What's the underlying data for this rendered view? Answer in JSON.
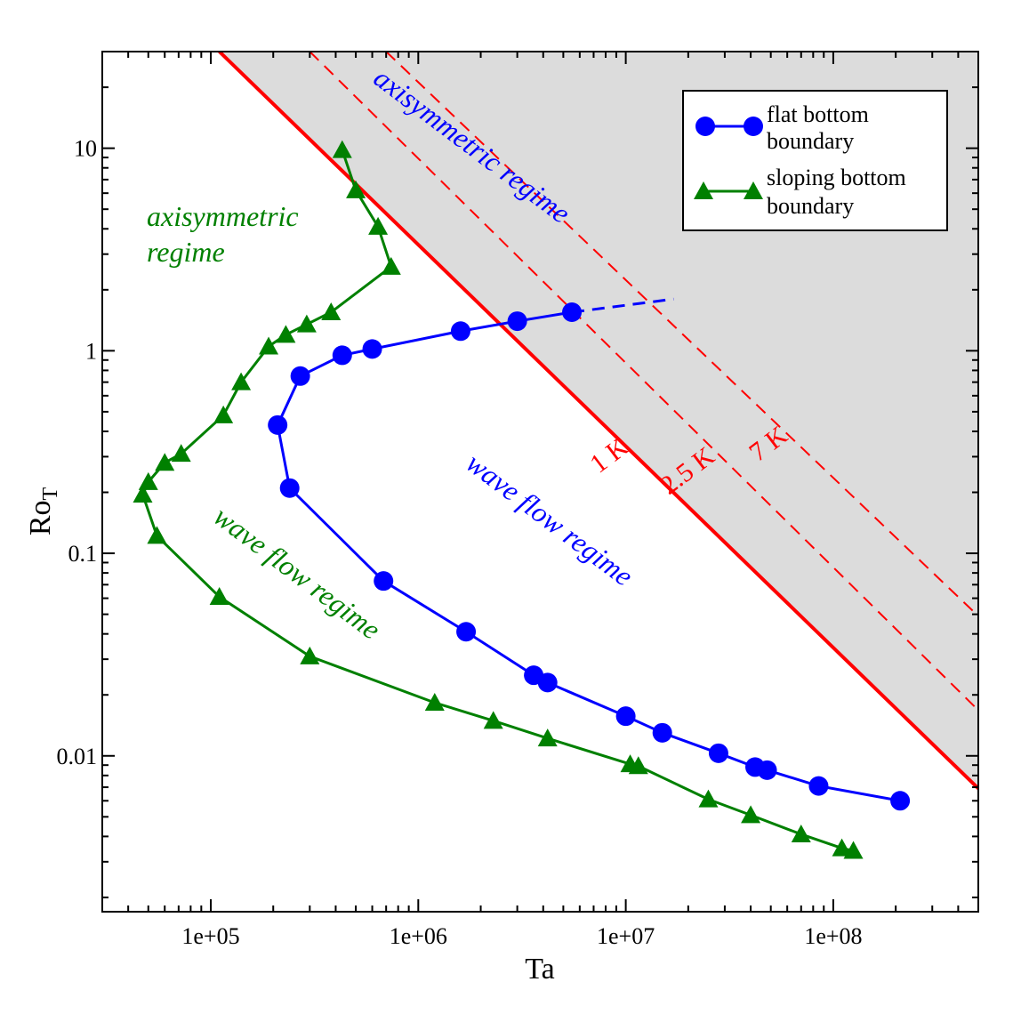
{
  "chart_data": {
    "type": "line",
    "xlabel": "Ta",
    "ylabel": "Ro",
    "ylabel_subscript": "T",
    "x_scale": "log",
    "y_scale": "log",
    "xlim": [
      30000,
      500000000
    ],
    "ylim": [
      0.0017,
      30
    ],
    "x_ticks": [
      {
        "value": 100000,
        "label": "1e+05"
      },
      {
        "value": 1000000,
        "label": "1e+06"
      },
      {
        "value": 10000000,
        "label": "1e+07"
      },
      {
        "value": 100000000,
        "label": "1e+08"
      }
    ],
    "y_ticks": [
      {
        "value": 0.01,
        "label": "0.01"
      },
      {
        "value": 0.1,
        "label": "0.1"
      },
      {
        "value": 1,
        "label": "1"
      },
      {
        "value": 10,
        "label": "10"
      }
    ],
    "series": [
      {
        "name": "flat bottom boundary",
        "legend_lines": [
          "flat bottom",
          "boundary"
        ],
        "color": "#0000ff",
        "marker": "circle",
        "points": [
          [
            5500000,
            1.55
          ],
          [
            3000000,
            1.4
          ],
          [
            1600000,
            1.25
          ],
          [
            600000,
            1.02
          ],
          [
            430000,
            0.95
          ],
          [
            270000,
            0.75
          ],
          [
            210000,
            0.43
          ],
          [
            240000,
            0.21
          ],
          [
            680000,
            0.073
          ],
          [
            1700000,
            0.041
          ],
          [
            3600000,
            0.025
          ],
          [
            4200000,
            0.023
          ],
          [
            10000000,
            0.0157
          ],
          [
            15000000,
            0.013
          ],
          [
            28000000,
            0.0103
          ],
          [
            42000000,
            0.0088
          ],
          [
            48000000,
            0.0085
          ],
          [
            85000000,
            0.0071
          ],
          [
            210000000,
            0.006
          ]
        ],
        "extension": [
          [
            5500000,
            1.55
          ],
          [
            17000000,
            1.8
          ]
        ]
      },
      {
        "name": "sloping bottom boundary",
        "legend_lines": [
          "sloping bottom",
          "boundary"
        ],
        "color": "#008000",
        "marker": "triangle",
        "points": [
          [
            430000,
            9.8
          ],
          [
            500000,
            6.2
          ],
          [
            640000,
            4.1
          ],
          [
            740000,
            2.6
          ],
          [
            380000,
            1.55
          ],
          [
            290000,
            1.35
          ],
          [
            230000,
            1.2
          ],
          [
            190000,
            1.05
          ],
          [
            140000,
            0.7
          ],
          [
            115000,
            0.48
          ],
          [
            72000,
            0.31
          ],
          [
            60000,
            0.28
          ],
          [
            50000,
            0.225
          ],
          [
            47000,
            0.195
          ],
          [
            55000,
            0.122
          ],
          [
            110000,
            0.061
          ],
          [
            300000,
            0.031
          ],
          [
            1200000,
            0.0183
          ],
          [
            2300000,
            0.0149
          ],
          [
            4200000,
            0.0122
          ],
          [
            10500000,
            0.0091
          ],
          [
            11500000,
            0.0089
          ],
          [
            25000000,
            0.0061
          ],
          [
            40000000,
            0.0051
          ],
          [
            70000000,
            0.0041
          ],
          [
            110000000,
            0.0035
          ],
          [
            125000000,
            0.0034
          ]
        ]
      }
    ],
    "threshold_lines": [
      {
        "label": "1 K",
        "style": "solid",
        "color": "#ff0000",
        "line": [
          [
            110000,
            30
          ],
          [
            500000000,
            0.0069
          ]
        ]
      },
      {
        "label": "2.5 K",
        "style": "dashed",
        "color": "#ff0000",
        "line": [
          [
            300000,
            30
          ],
          [
            500000000,
            0.0168
          ]
        ]
      },
      {
        "label": "7 K",
        "style": "dashed",
        "color": "#ff0000",
        "line": [
          [
            700000,
            30
          ],
          [
            500000000,
            0.049
          ]
        ]
      }
    ],
    "shaded_region": {
      "color": "#dcdcdc",
      "bounded_by": "1 K"
    },
    "annotations": [
      {
        "text_lines": [
          "axisymmetric",
          "regime"
        ],
        "color": "#008000"
      },
      {
        "text_lines": [
          "wave flow regime"
        ],
        "color": "#008000"
      },
      {
        "text_lines": [
          "axisymmetric regime"
        ],
        "color": "#0000ff"
      },
      {
        "text_lines": [
          "wave flow regime"
        ],
        "color": "#0000ff"
      }
    ],
    "legend_position": "top-right"
  }
}
